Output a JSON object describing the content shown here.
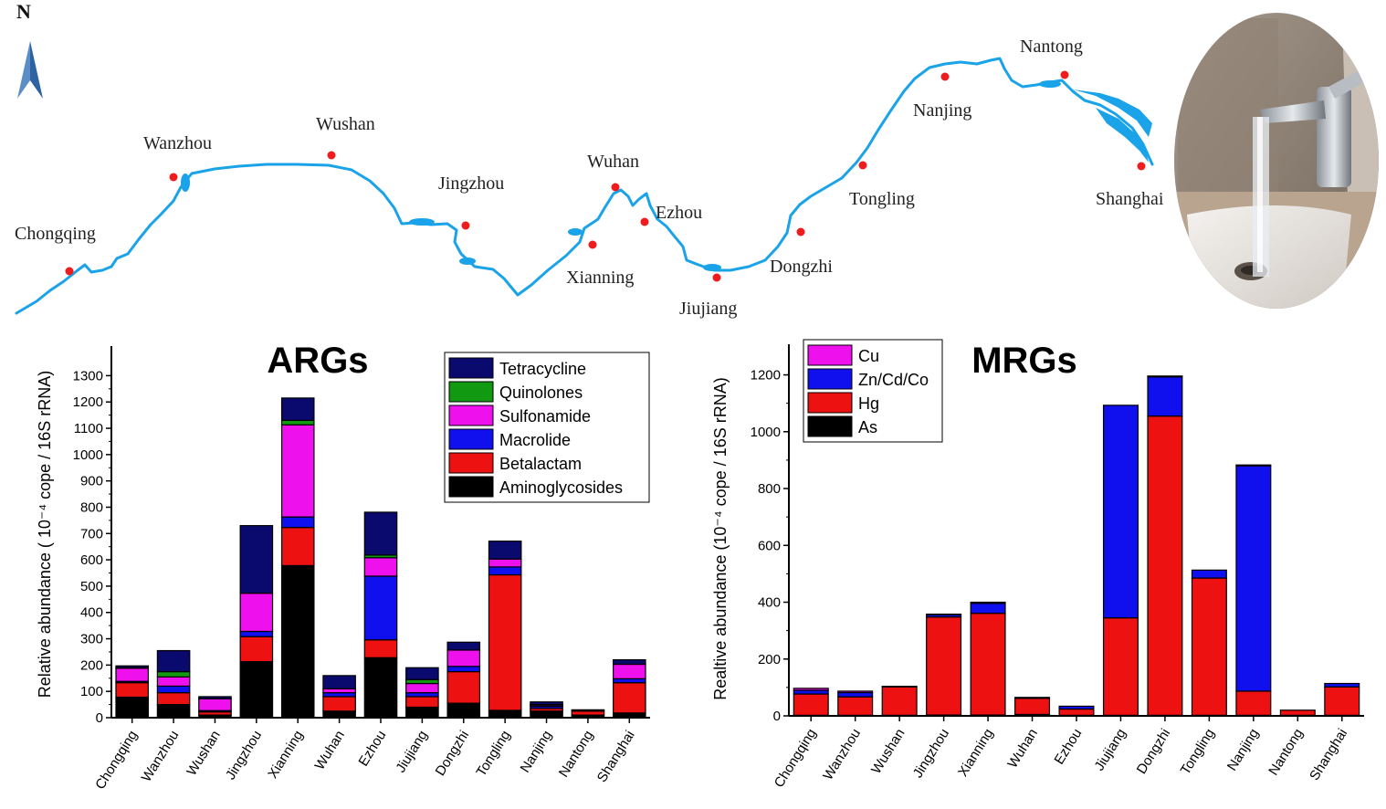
{
  "map": {
    "north_label": "N",
    "river_color": "#1aa3e8",
    "marker_color": "#ee1c1c",
    "cities": [
      "Chongqing",
      "Wanzhou",
      "Wushan",
      "Jingzhou",
      "Wuhan",
      "Ezhou",
      "Xianning",
      "Jiujiang",
      "Dongzhi",
      "Tongling",
      "Nanjing",
      "Nantong",
      "Shanghai"
    ]
  },
  "photo": {
    "icon": "faucet-photo"
  },
  "chart_data": [
    {
      "type": "bar",
      "stacked": true,
      "title": "ARGs",
      "xlabel": "",
      "ylabel": "Relative abundance ( 10⁻⁴ cope / 16S rRNA)",
      "ylim": [
        0,
        1350
      ],
      "yticks": [
        0,
        100,
        200,
        300,
        400,
        500,
        600,
        700,
        800,
        900,
        1000,
        1100,
        1200,
        1300
      ],
      "legend_position": "top-right",
      "categories": [
        "Chongqing",
        "Wanzhou",
        "Wushan",
        "Jingzhou",
        "Xianning",
        "Wuhan",
        "Ezhou",
        "Jiujiang",
        "Dongzhi",
        "Tongling",
        "Nanjing",
        "Nantong",
        "Shanghai"
      ],
      "series": [
        {
          "name": "Aminoglycosides",
          "color": "#000000",
          "values": [
            78,
            50,
            10,
            213,
            578,
            25,
            228,
            40,
            55,
            28,
            25,
            10,
            18
          ]
        },
        {
          "name": "Betalactam",
          "color": "#ee1111",
          "values": [
            55,
            45,
            12,
            95,
            145,
            55,
            68,
            40,
            120,
            515,
            10,
            15,
            115
          ]
        },
        {
          "name": "Macrolide",
          "color": "#1010ee",
          "values": [
            5,
            25,
            5,
            20,
            40,
            15,
            242,
            15,
            20,
            30,
            8,
            3,
            15
          ]
        },
        {
          "name": "Sulfonamide",
          "color": "#ee11ee",
          "values": [
            50,
            35,
            45,
            145,
            350,
            15,
            70,
            35,
            62,
            30,
            5,
            0,
            55
          ]
        },
        {
          "name": "Quinolones",
          "color": "#119911",
          "values": [
            2,
            20,
            0,
            0,
            17,
            0,
            10,
            15,
            0,
            0,
            2,
            0,
            0
          ]
        },
        {
          "name": "Tetracycline",
          "color": "#0a0a6e",
          "values": [
            7,
            80,
            8,
            257,
            85,
            50,
            163,
            45,
            30,
            68,
            10,
            2,
            17
          ]
        }
      ]
    },
    {
      "type": "bar",
      "stacked": true,
      "title": "MRGs",
      "xlabel": "",
      "ylabel": "Realtive abundance (10⁻⁴ cope / 16S rRNA)",
      "ylim": [
        0,
        1250
      ],
      "yticks": [
        0,
        200,
        400,
        600,
        800,
        1000,
        1200
      ],
      "legend_position": "top-left",
      "categories": [
        "Chongqing",
        "Wanzhou",
        "Wushan",
        "Jingzhou",
        "Xianning",
        "Wuhan",
        "Ezhou",
        "Jiujiang",
        "Dongzhi",
        "Tongling",
        "Nanjing",
        "Nantong",
        "Shanghai"
      ],
      "series": [
        {
          "name": "As",
          "color": "#000000",
          "values": [
            2,
            2,
            2,
            3,
            3,
            5,
            2,
            2,
            2,
            2,
            2,
            2,
            2
          ]
        },
        {
          "name": "Hg",
          "color": "#ee1111",
          "values": [
            75,
            65,
            100,
            345,
            358,
            57,
            22,
            343,
            1053,
            483,
            85,
            18,
            100
          ]
        },
        {
          "name": "Zn/Cd/Co",
          "color": "#1010ee",
          "values": [
            13,
            15,
            2,
            8,
            35,
            3,
            10,
            748,
            138,
            28,
            793,
            0,
            12
          ]
        },
        {
          "name": "Cu",
          "color": "#ee11ee",
          "values": [
            7,
            5,
            0,
            2,
            4,
            0,
            0,
            0,
            3,
            0,
            3,
            0,
            0
          ]
        }
      ]
    }
  ]
}
